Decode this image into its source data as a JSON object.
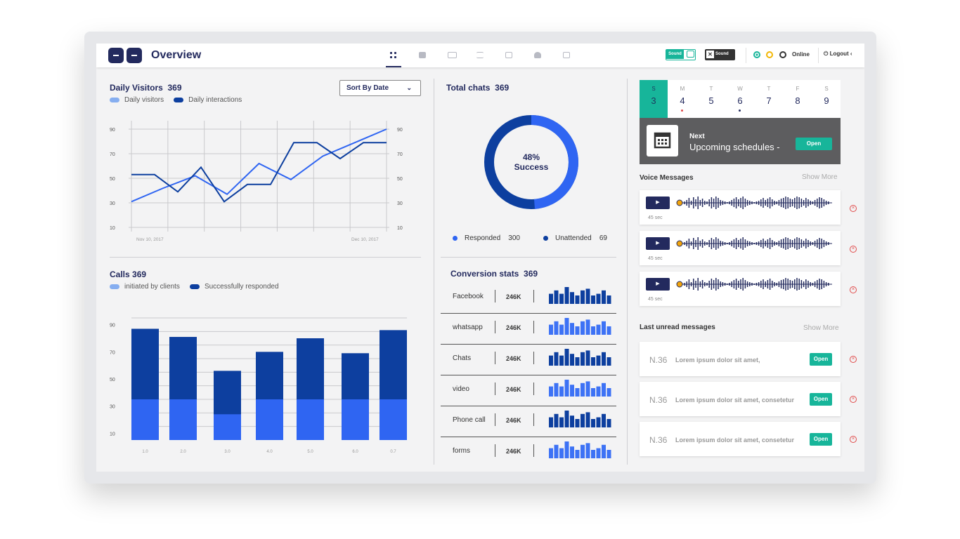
{
  "header": {
    "title": "Overview",
    "sound_on_label": "Sound",
    "sound_off_label": "Sound",
    "online_label": "Online",
    "logout_label": "Logout"
  },
  "daily_visitors": {
    "label": "Daily Visitors",
    "count": "369",
    "legend": [
      "Daily visitors",
      "Daily interactions"
    ],
    "sort_label": "Sort By Date",
    "x_labels": [
      "Nov 10, 2017",
      "Dec 10, 2017"
    ],
    "y_ticks": [
      "90",
      "70",
      "50",
      "30",
      "10"
    ]
  },
  "calls": {
    "label": "Calls 369",
    "legend": [
      "initiated by clients",
      "Successfully responded"
    ],
    "y_ticks": [
      "90",
      "70",
      "50",
      "30",
      "10"
    ],
    "x_ticks": [
      "1.0",
      "2.0",
      "3.0",
      "4.0",
      "5.0",
      "6.0",
      "0.7"
    ]
  },
  "total_chats": {
    "label": "Total chats",
    "count": "369",
    "percent": "48%",
    "success": "Success",
    "responded_label": "Responded",
    "responded_value": "300",
    "unattended_label": "Unattended",
    "unattended_value": "69"
  },
  "conversion": {
    "label": "Conversion stats",
    "count": "369",
    "rows": [
      {
        "name": "Facebook",
        "value": "246K"
      },
      {
        "name": "whatsapp",
        "value": "246K"
      },
      {
        "name": "Chats",
        "value": "246K"
      },
      {
        "name": "video",
        "value": "246K"
      },
      {
        "name": "Phone call",
        "value": "246K"
      },
      {
        "name": "forms",
        "value": "246K"
      }
    ]
  },
  "calendar": {
    "days": [
      {
        "w": "S",
        "n": "3"
      },
      {
        "w": "M",
        "n": "4"
      },
      {
        "w": "T",
        "n": "5"
      },
      {
        "w": "W",
        "n": "6"
      },
      {
        "w": "T",
        "n": "7"
      },
      {
        "w": "F",
        "n": "8"
      },
      {
        "w": "S",
        "n": "9"
      }
    ],
    "next_label": "Next",
    "next_title": "Upcoming schedules -",
    "open_label": "Open"
  },
  "voice": {
    "label": "Voice Messages",
    "show_more": "Show More",
    "items": [
      {
        "duration": "45 sec"
      },
      {
        "duration": "45 sec"
      },
      {
        "duration": "45 sec"
      }
    ]
  },
  "messages": {
    "label": "Last unread messages",
    "show_more": "Show More",
    "open_label": "Open",
    "items": [
      {
        "num": "N.36",
        "text": "Lorem ipsum dolor sit amet,"
      },
      {
        "num": "N.36",
        "text": "Lorem ipsum dolor sit amet, consetetur"
      },
      {
        "num": "N.36",
        "text": "Lorem ipsum dolor sit amet, consetetur"
      }
    ]
  },
  "colors": {
    "navy": "#232a5e",
    "dark_blue": "#0d3f9f",
    "bright_blue": "#2f65f2",
    "light_blue": "#3d72f5",
    "teal": "#17b59a"
  },
  "chart_data": [
    {
      "type": "line",
      "title": "Daily Visitors",
      "x_tick_labels": [
        "Nov 10, 2017",
        "Dec 10, 2017"
      ],
      "ylim": [
        10,
        90
      ],
      "series": [
        {
          "name": "Daily visitors",
          "values": [
            31,
            42,
            52,
            37,
            62,
            49,
            68,
            79,
            90
          ]
        },
        {
          "name": "Daily interactions",
          "values": [
            53,
            53,
            39,
            59,
            31,
            45,
            45,
            79,
            79,
            66,
            79,
            79
          ]
        }
      ]
    },
    {
      "type": "bar",
      "title": "Calls 369",
      "categories": [
        "1.0",
        "2.0",
        "3.0",
        "4.0",
        "5.0",
        "6.0",
        "0.7"
      ],
      "ylim": [
        0,
        90
      ],
      "series": [
        {
          "name": "initiated by clients",
          "values": [
            30,
            30,
            19,
            30,
            30,
            30,
            30
          ]
        },
        {
          "name": "Successfully responded",
          "values": [
            82,
            76,
            51,
            65,
            75,
            64,
            81
          ]
        }
      ]
    },
    {
      "type": "pie",
      "title": "Total chats",
      "categories": [
        "Responded",
        "Unattended"
      ],
      "values": [
        300,
        69
      ]
    },
    {
      "type": "bar",
      "title": "Conversion stats",
      "series": [
        {
          "values": [
            6,
            8,
            6,
            10,
            7,
            5,
            8,
            9,
            5,
            6,
            8,
            5
          ]
        },
        {
          "values": [
            6,
            8,
            6,
            10,
            7,
            5,
            8,
            9,
            5,
            6,
            8,
            5
          ]
        },
        {
          "values": [
            6,
            8,
            6,
            10,
            7,
            5,
            8,
            9,
            5,
            6,
            8,
            5
          ]
        },
        {
          "values": [
            6,
            8,
            6,
            10,
            7,
            5,
            8,
            9,
            5,
            6,
            8,
            5
          ]
        },
        {
          "values": [
            6,
            8,
            6,
            10,
            7,
            5,
            8,
            9,
            5,
            6,
            8,
            5
          ]
        },
        {
          "values": [
            6,
            8,
            6,
            10,
            7,
            5,
            8,
            9,
            5,
            6,
            8,
            5
          ]
        }
      ]
    }
  ]
}
